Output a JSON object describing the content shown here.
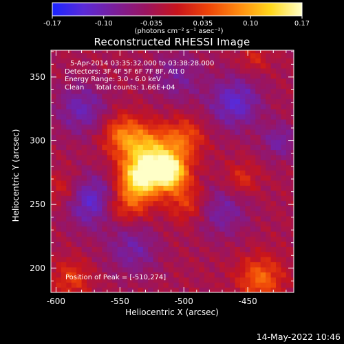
{
  "title": "Reconstructed RHESSI Image",
  "colorbar": {
    "ticks": [
      "-0.17",
      "-0.10",
      "-0.035",
      "0.035",
      "0.10",
      "0.17"
    ],
    "units": "(photons cm⁻² s⁻¹ asec⁻²)",
    "range": [
      -0.17,
      0.17
    ],
    "colors": [
      "#1a24ff",
      "#5a2ad8",
      "#7a1e9a",
      "#9a1460",
      "#c8141c",
      "#ee4408",
      "#ff8c10",
      "#ffd81c",
      "#ffffc8"
    ]
  },
  "info": {
    "time": "5-Apr-2014 03:35:32.000 to 03:38:28.000",
    "detectors": "Detectors: 3F 4F 5F 6F 7F 8F, Att 0",
    "energy": "Energy Range: 3.0 - 6.0 keV",
    "clean": "Clean     Total counts: 1.66E+04"
  },
  "peak_text": "Position of Peak = [-510,274]",
  "xlabel": "Heliocentric X (arcsec)",
  "ylabel": "Heliocentric Y (arcsec)",
  "timestamp": "14-May-2022 10:46",
  "chart_data": {
    "type": "heatmap",
    "title": "Reconstructed RHESSI Image",
    "xlabel": "Heliocentric X (arcsec)",
    "ylabel": "Heliocentric Y (arcsec)",
    "xlim": [
      -604,
      -414
    ],
    "ylim": [
      181,
      371
    ],
    "xticks": [
      -600,
      -550,
      -500,
      -450
    ],
    "yticks": [
      200,
      250,
      300,
      350
    ],
    "xtick_labels": [
      "-600",
      "-550",
      "-500",
      "-450"
    ],
    "ytick_labels": [
      "200",
      "250",
      "300",
      "350"
    ],
    "peak": [
      -510,
      274
    ],
    "sources": [
      {
        "x": -512,
        "y": 276,
        "amp": 0.2,
        "sigma": 10
      },
      {
        "x": -535,
        "y": 270,
        "amp": 0.17,
        "sigma": 11
      },
      {
        "x": -528,
        "y": 292,
        "amp": 0.13,
        "sigma": 13
      },
      {
        "x": -548,
        "y": 305,
        "amp": 0.09,
        "sigma": 11
      },
      {
        "x": -500,
        "y": 302,
        "amp": 0.08,
        "sigma": 11
      },
      {
        "x": -498,
        "y": 252,
        "amp": 0.06,
        "sigma": 11
      },
      {
        "x": -556,
        "y": 248,
        "amp": 0.05,
        "sigma": 10
      },
      {
        "x": -540,
        "y": 250,
        "amp": 0.05,
        "sigma": 10
      },
      {
        "x": -440,
        "y": 192,
        "amp": 0.09,
        "sigma": 12
      },
      {
        "x": -588,
        "y": 192,
        "amp": 0.06,
        "sigma": 10
      },
      {
        "x": -455,
        "y": 270,
        "amp": 0.05,
        "sigma": 9
      },
      {
        "x": -595,
        "y": 262,
        "amp": 0.04,
        "sigma": 9
      },
      {
        "x": -445,
        "y": 365,
        "amp": 0.04,
        "sigma": 8
      }
    ],
    "troughs": [
      {
        "x": -570,
        "y": 252,
        "amp": -0.1,
        "sigma": 14
      },
      {
        "x": -580,
        "y": 325,
        "amp": -0.07,
        "sigma": 14
      },
      {
        "x": -460,
        "y": 330,
        "amp": -0.09,
        "sigma": 14
      },
      {
        "x": -425,
        "y": 300,
        "amp": -0.06,
        "sigma": 10
      },
      {
        "x": -470,
        "y": 245,
        "amp": -0.06,
        "sigma": 14
      },
      {
        "x": -540,
        "y": 215,
        "amp": -0.06,
        "sigma": 14
      },
      {
        "x": -505,
        "y": 350,
        "amp": -0.05,
        "sigma": 14
      }
    ],
    "background": -0.03
  }
}
